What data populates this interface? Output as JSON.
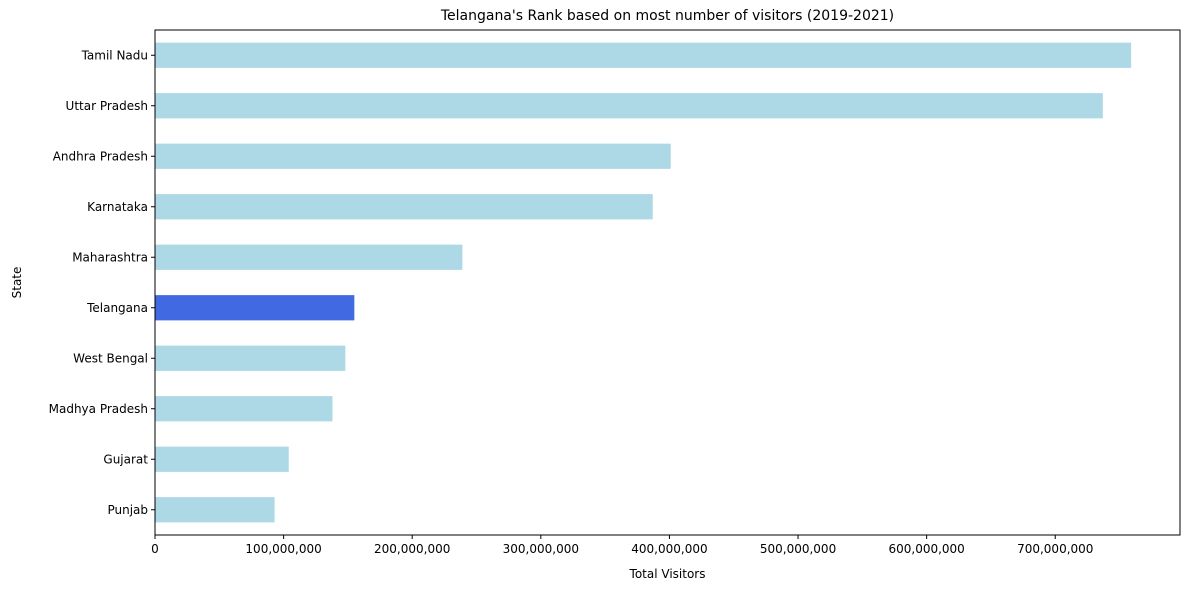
{
  "chart_data": {
    "type": "bar",
    "orientation": "horizontal",
    "title": "Telangana's Rank based on most number of visitors (2019-2021)",
    "xlabel": "Total Visitors",
    "ylabel": "State",
    "xlim": [
      0,
      797000000
    ],
    "xticks": [
      0,
      100000000,
      200000000,
      300000000,
      400000000,
      500000000,
      600000000,
      700000000
    ],
    "xtick_labels": [
      "0",
      "100,000,000",
      "200,000,000",
      "300,000,000",
      "400,000,000",
      "500,000,000",
      "600,000,000",
      "700,000,000"
    ],
    "categories": [
      "Tamil Nadu",
      "Uttar Pradesh ",
      "Andhra Pradesh",
      "Karnataka ",
      "Maharashtra",
      "Telangana",
      "West Bengal",
      "Madhya Pradesh",
      "Gujarat",
      "Punjab "
    ],
    "values": [
      759000000,
      737000000,
      401000000,
      387000000,
      239000000,
      155000000,
      148000000,
      138000000,
      104000000,
      93000000
    ],
    "highlight": "Telangana",
    "colors": {
      "default": "#add8e6",
      "highlight": "#4169e1"
    },
    "grid": false,
    "legend": "none"
  }
}
